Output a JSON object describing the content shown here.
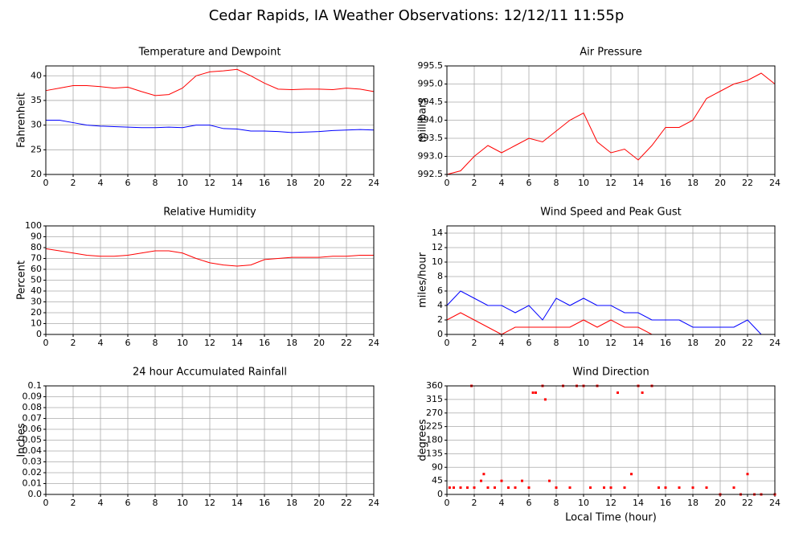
{
  "title": "Cedar Rapids, IA Weather Observations: 12/12/11 11:55p",
  "chart_data": [
    {
      "type": "line",
      "title": "Temperature and Dewpoint",
      "ylabel": "Fahrenheit",
      "x": [
        0,
        1,
        2,
        3,
        4,
        5,
        6,
        7,
        8,
        9,
        10,
        11,
        12,
        13,
        14,
        15,
        16,
        17,
        18,
        19,
        20,
        21,
        22,
        23,
        24
      ],
      "series": [
        {
          "color": "#ff0000",
          "values": [
            37,
            37.5,
            38,
            38,
            37.8,
            37.5,
            37.7,
            36.8,
            36,
            36.2,
            37.5,
            40,
            40.8,
            41,
            41.3,
            40,
            38.5,
            37.3,
            37.2,
            37.3,
            37.3,
            37.2,
            37.5,
            37.3,
            36.8
          ]
        },
        {
          "color": "#0000ff",
          "values": [
            31,
            31,
            30.5,
            30,
            29.8,
            29.7,
            29.6,
            29.5,
            29.5,
            29.6,
            29.5,
            30,
            30,
            29.3,
            29.2,
            28.8,
            28.8,
            28.7,
            28.5,
            28.6,
            28.7,
            28.9,
            29,
            29.1,
            29
          ]
        }
      ],
      "xlim": [
        0,
        24
      ],
      "xticks": [
        0,
        2,
        4,
        6,
        8,
        10,
        12,
        14,
        16,
        18,
        20,
        22,
        24
      ],
      "ylim": [
        20,
        42
      ],
      "yticks": [
        20,
        25,
        30,
        35,
        40
      ],
      "grid": true
    },
    {
      "type": "line",
      "title": "Air Pressure",
      "ylabel": "millibars",
      "x": [
        0,
        1,
        2,
        3,
        4,
        5,
        6,
        7,
        8,
        9,
        10,
        11,
        12,
        13,
        14,
        15,
        16,
        17,
        18,
        19,
        20,
        21,
        22,
        23,
        24
      ],
      "series": [
        {
          "color": "#ff0000",
          "values": [
            992.5,
            992.6,
            993,
            993.3,
            993.1,
            993.3,
            993.5,
            993.4,
            993.7,
            994,
            994.2,
            993.4,
            993.1,
            993.2,
            992.9,
            993.3,
            993.8,
            993.8,
            994,
            994.6,
            994.8,
            995,
            995.1,
            995.3,
            995
          ]
        }
      ],
      "xlim": [
        0,
        24
      ],
      "xticks": [
        0,
        2,
        4,
        6,
        8,
        10,
        12,
        14,
        16,
        18,
        20,
        22,
        24
      ],
      "ylim": [
        992.5,
        995.5
      ],
      "yticks": [
        992.5,
        {
          "value": 993,
          "label": "993.0"
        },
        993.5,
        {
          "value": 994,
          "label": "994.0"
        },
        994.5,
        {
          "value": 995,
          "label": "995.0"
        },
        995.5
      ],
      "grid": true
    },
    {
      "type": "line",
      "title": "Relative Humidity",
      "ylabel": "Percent",
      "x": [
        0,
        1,
        2,
        3,
        4,
        5,
        6,
        7,
        8,
        9,
        10,
        11,
        12,
        13,
        14,
        15,
        16,
        17,
        18,
        19,
        20,
        21,
        22,
        23,
        24
      ],
      "series": [
        {
          "color": "#ff0000",
          "values": [
            79,
            77,
            75,
            73,
            72,
            72,
            73,
            75,
            77,
            77,
            75,
            70,
            66,
            64,
            63,
            64,
            69,
            70,
            71,
            71,
            71,
            72,
            72,
            73,
            73
          ]
        }
      ],
      "xlim": [
        0,
        24
      ],
      "xticks": [
        0,
        2,
        4,
        6,
        8,
        10,
        12,
        14,
        16,
        18,
        20,
        22,
        24
      ],
      "ylim": [
        0,
        100
      ],
      "yticks": [
        0,
        10,
        20,
        30,
        40,
        50,
        60,
        70,
        80,
        90,
        100
      ],
      "grid": true
    },
    {
      "type": "line",
      "title": "Wind Speed and Peak Gust",
      "ylabel": "miles/hour",
      "x": [
        0,
        1,
        2,
        3,
        4,
        5,
        6,
        7,
        8,
        9,
        10,
        11,
        12,
        13,
        14,
        15,
        16,
        17,
        18,
        19,
        20,
        21,
        22,
        23,
        24
      ],
      "series": [
        {
          "color": "#0000ff",
          "values": [
            4,
            6,
            5,
            4,
            4,
            3,
            4,
            2,
            5,
            4,
            5,
            4,
            4,
            3,
            3,
            2,
            2,
            2,
            1,
            1,
            1,
            1,
            2,
            0,
            0
          ]
        },
        {
          "color": "#ff0000",
          "values": [
            2,
            3,
            2,
            1,
            0,
            1,
            1,
            1,
            1,
            1,
            2,
            1,
            2,
            1,
            1,
            0,
            0,
            0,
            0,
            0,
            0,
            0,
            0,
            0,
            0
          ]
        }
      ],
      "xlim": [
        0,
        24
      ],
      "xticks": [
        0,
        2,
        4,
        6,
        8,
        10,
        12,
        14,
        16,
        18,
        20,
        22,
        24
      ],
      "ylim": [
        0,
        15
      ],
      "yticks": [
        0,
        2,
        4,
        6,
        8,
        10,
        12,
        14
      ],
      "grid": true
    },
    {
      "type": "line",
      "title": "24 hour Accumulated Rainfall",
      "ylabel": "Inches",
      "x": [
        0,
        24
      ],
      "series": [
        {
          "color": "#ff0000",
          "values": [
            0,
            0
          ]
        }
      ],
      "xlim": [
        0,
        24
      ],
      "xticks": [
        0,
        2,
        4,
        6,
        8,
        10,
        12,
        14,
        16,
        18,
        20,
        22,
        24
      ],
      "ylim": [
        0,
        0.1
      ],
      "yticks": [
        {
          "value": 0,
          "label": "0.0"
        },
        0.01,
        0.02,
        0.03,
        0.04,
        0.05,
        0.06,
        0.07,
        0.08,
        0.09,
        0.1
      ],
      "grid": true
    },
    {
      "type": "scatter",
      "title": "Wind Direction",
      "ylabel": "degrees",
      "xlabel": "Local Time (hour)",
      "x": [
        0.2,
        0.5,
        1,
        1.5,
        1.8,
        2,
        2.5,
        2.7,
        3,
        3.5,
        4,
        4.5,
        5,
        5.5,
        6,
        6.3,
        6.5,
        7,
        7.2,
        7.5,
        8,
        8.5,
        9,
        9.5,
        10,
        10.5,
        11,
        11.5,
        12,
        12.5,
        13,
        13.5,
        14,
        14.3,
        15,
        15.5,
        16,
        17,
        18,
        19,
        20,
        21,
        21.5,
        22,
        22.5,
        23,
        24
      ],
      "series": [
        {
          "color": "#ff0000",
          "values": [
            22.5,
            22.5,
            22.5,
            22.5,
            360,
            22.5,
            45,
            67.5,
            22.5,
            22.5,
            45,
            22.5,
            22.5,
            45,
            22.5,
            337.5,
            337.5,
            360,
            315,
            45,
            22.5,
            360,
            22.5,
            360,
            360,
            22.5,
            360,
            22.5,
            22.5,
            337.5,
            22.5,
            67.5,
            360,
            337.5,
            360,
            22.5,
            22.5,
            22.5,
            22.5,
            22.5,
            0,
            22.5,
            0,
            67.5,
            0,
            0,
            0
          ]
        }
      ],
      "xlim": [
        0,
        24
      ],
      "xticks": [
        0,
        2,
        4,
        6,
        8,
        10,
        12,
        14,
        16,
        18,
        20,
        22,
        24
      ],
      "ylim": [
        0,
        360
      ],
      "yticks": [
        0,
        45,
        90,
        135,
        180,
        225,
        270,
        315,
        360
      ],
      "grid": true
    }
  ]
}
